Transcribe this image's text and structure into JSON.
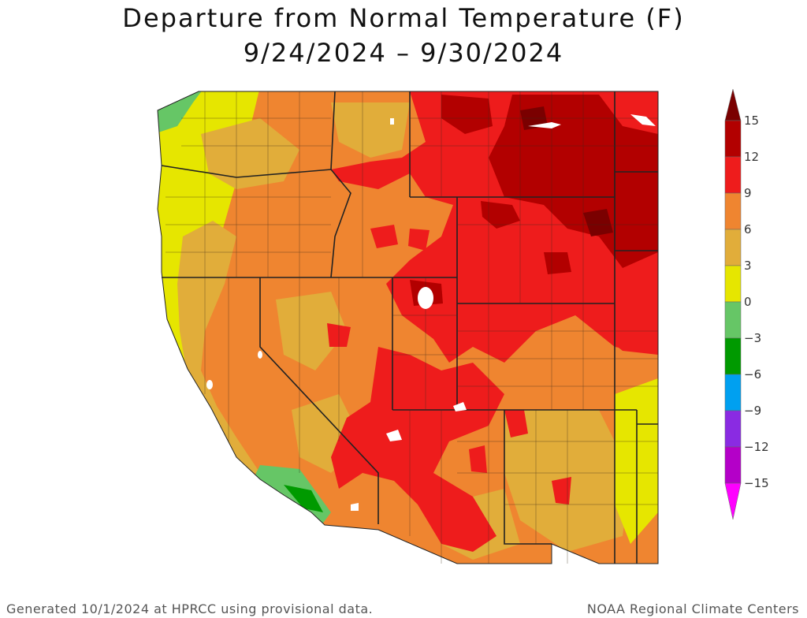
{
  "title": {
    "line1": "Departure from Normal Temperature (F)",
    "line2": "9/24/2024 – 9/30/2024"
  },
  "legend": {
    "labels": [
      "15",
      "12",
      "9",
      "6",
      "3",
      "0",
      "−3",
      "−6",
      "−9",
      "−12",
      "−15"
    ],
    "bins": [
      {
        "color": "#7a0000"
      },
      {
        "color": "#b20000"
      },
      {
        "color": "#ee1c1c"
      },
      {
        "color": "#ef8530"
      },
      {
        "color": "#e1ad3a"
      },
      {
        "color": "#e6e600"
      },
      {
        "color": "#66c666"
      },
      {
        "color": "#009a00"
      },
      {
        "color": "#00a0f0"
      },
      {
        "color": "#8a2be2"
      },
      {
        "color": "#b400c8"
      },
      {
        "color": "#ff00ff"
      }
    ]
  },
  "footer": {
    "left": "Generated 10/1/2024 at HPRCC using provisional data.",
    "right": "NOAA Regional Climate Centers"
  }
}
